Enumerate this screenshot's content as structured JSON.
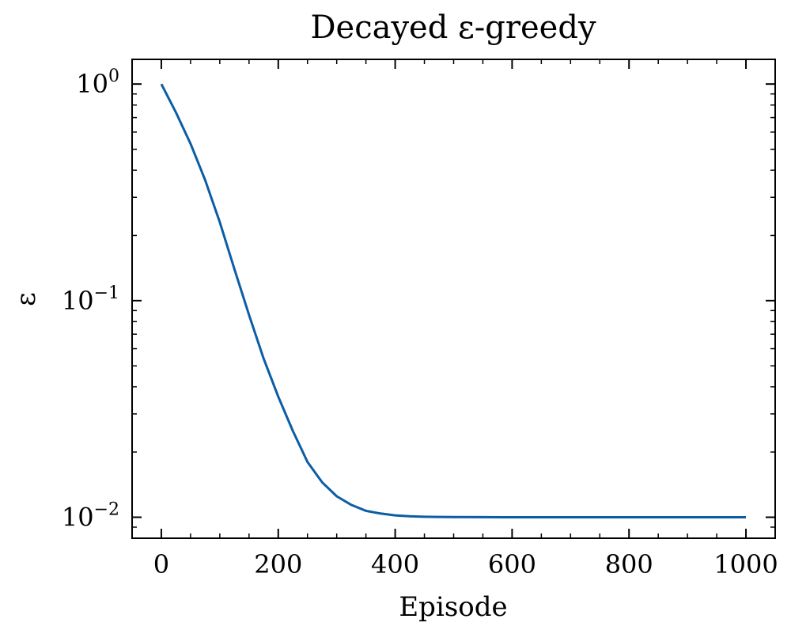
{
  "chart_data": {
    "type": "line",
    "title": "Decayed ε-greedy",
    "xlabel": "Episode",
    "ylabel": "ε",
    "xlim": [
      -50,
      1050
    ],
    "ylim": [
      0.008,
      1.3
    ],
    "yscale": "log",
    "grid": false,
    "legend": "none",
    "line_color": "#0C5DA5",
    "xticks": [
      0,
      200,
      400,
      600,
      800,
      1000
    ],
    "xtick_labels": [
      "0",
      "200",
      "400",
      "600",
      "800",
      "1000"
    ],
    "yticks": [
      {
        "value": 1,
        "base": "10",
        "exp": "0"
      },
      {
        "value": 0.1,
        "base": "10",
        "exp": "−1"
      },
      {
        "value": 0.01,
        "base": "10",
        "exp": "−2"
      }
    ],
    "series": [
      {
        "x": [
          0,
          25,
          50,
          75,
          100,
          125,
          150,
          175,
          200,
          225,
          250,
          275,
          300,
          325,
          350,
          375,
          400,
          425,
          450,
          475,
          500,
          550,
          600,
          650,
          700,
          800,
          900,
          1000
        ],
        "y": [
          1.0,
          0.74,
          0.53,
          0.36,
          0.23,
          0.14,
          0.086,
          0.054,
          0.036,
          0.025,
          0.018,
          0.0145,
          0.0125,
          0.0114,
          0.0107,
          0.0104,
          0.0102,
          0.0101,
          0.01005,
          0.01003,
          0.01002,
          0.01001,
          0.01,
          0.01,
          0.01,
          0.01,
          0.01,
          0.01
        ]
      }
    ]
  }
}
